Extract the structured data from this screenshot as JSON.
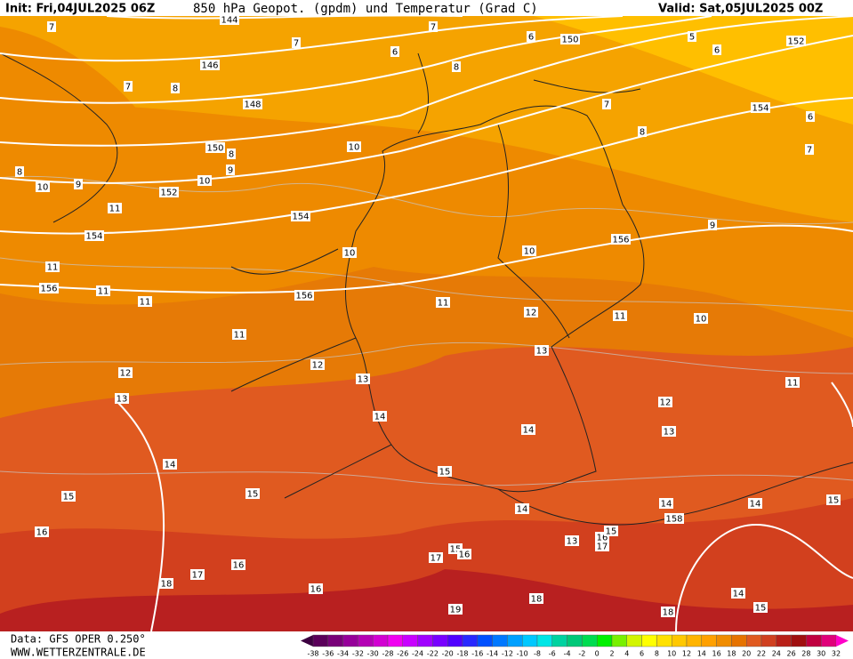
{
  "header": {
    "init": "Init: Fri,04JUL2025 06Z",
    "title": "850 hPa Geopot. (gpdm) und Temperatur (Grad C)",
    "valid": "Valid: Sat,05JUL2025 00Z"
  },
  "footer": {
    "data": "Data: GFS OPER 0.250°",
    "website": "WWW.WETTERZENTRALE.DE"
  },
  "legend": {
    "ticks": [
      -38,
      -36,
      -34,
      -32,
      -30,
      -28,
      -26,
      -24,
      -22,
      -20,
      -18,
      -16,
      -14,
      -12,
      -10,
      -8,
      -6,
      -4,
      -2,
      0,
      2,
      4,
      6,
      8,
      10,
      12,
      14,
      16,
      18,
      20,
      22,
      24,
      26,
      28,
      30,
      32
    ],
    "colors": [
      "#3c0040",
      "#5a005a",
      "#780078",
      "#96009a",
      "#b400b4",
      "#d200d2",
      "#f000f0",
      "#c800ff",
      "#a000ff",
      "#7800ff",
      "#5000ff",
      "#2828ff",
      "#0050ff",
      "#0078ff",
      "#00a0ff",
      "#00c8ff",
      "#00e6e6",
      "#00d2a0",
      "#00c878",
      "#00dc50",
      "#00f000",
      "#78f000",
      "#d2f500",
      "#ffff00",
      "#ffe100",
      "#ffc800",
      "#ffb400",
      "#ffa000",
      "#f08c00",
      "#e67300",
      "#e05a20",
      "#d04020",
      "#b82018",
      "#a01010",
      "#c00040",
      "#e0007a",
      "#ff00c8"
    ]
  },
  "map": {
    "geopotential_labels": [
      144,
      146,
      148,
      150,
      150,
      152,
      152,
      154,
      154,
      154,
      156,
      156,
      156,
      158
    ],
    "temperature_labels": [
      7,
      7,
      7,
      6,
      6,
      5,
      6,
      7,
      8,
      8,
      7,
      6,
      8,
      7,
      10,
      8,
      9,
      10,
      9,
      10,
      8,
      11,
      9,
      10,
      10,
      11,
      11,
      11,
      11,
      12,
      11,
      10,
      11,
      13,
      12,
      12,
      13,
      11,
      13,
      12,
      14,
      13,
      14,
      14,
      15,
      15,
      15,
      14,
      14,
      15,
      14,
      16,
      13,
      15,
      16,
      17,
      15,
      17,
      16,
      16,
      17,
      18,
      16,
      14,
      18,
      19,
      15,
      18
    ]
  }
}
